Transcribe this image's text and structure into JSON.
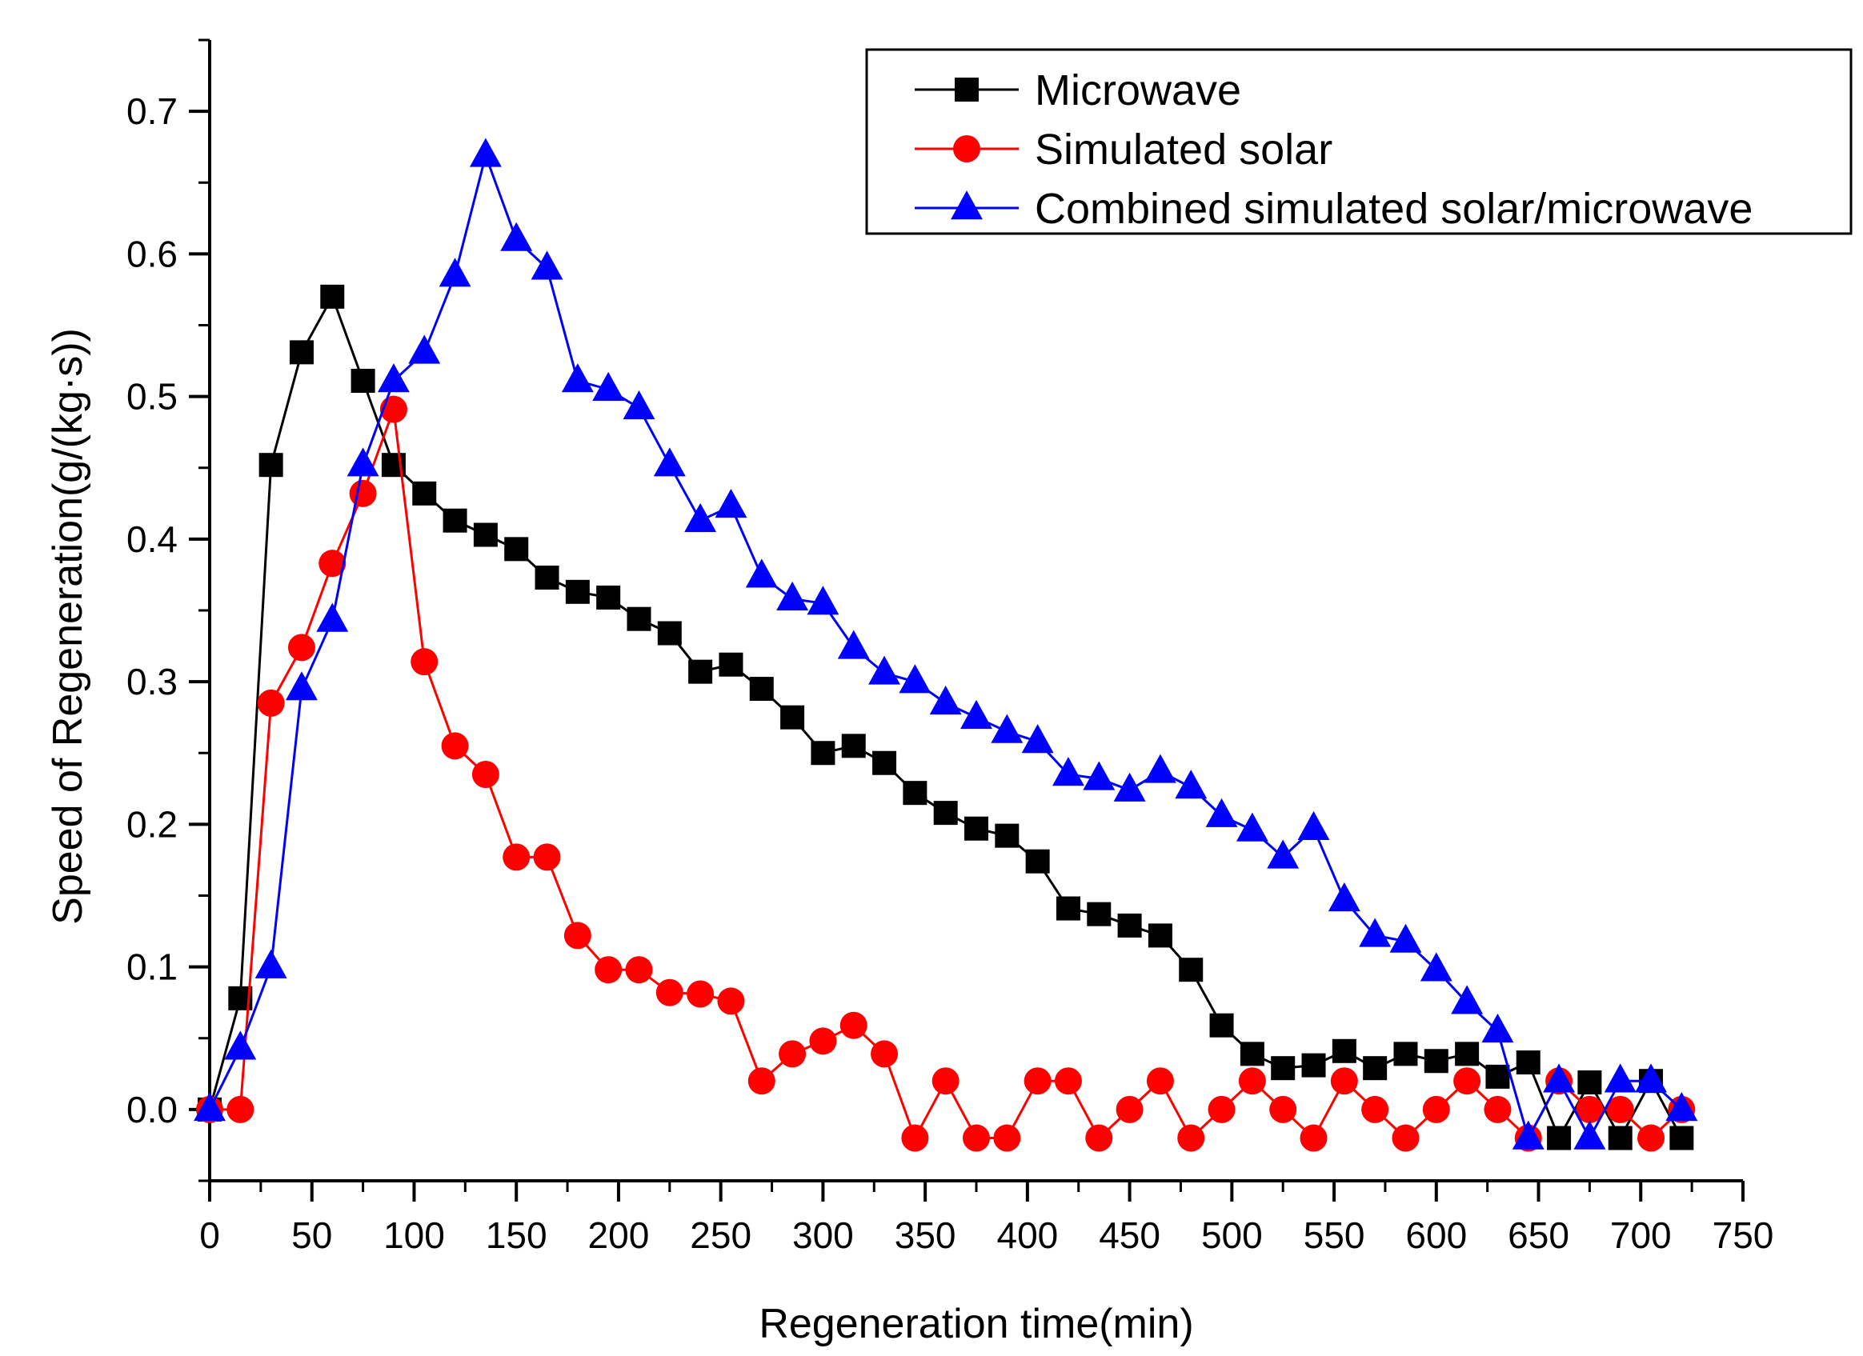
{
  "chart_data": {
    "type": "line",
    "xlabel": "Regeneration time(min)",
    "ylabel": "Speed of Regeneration(g/(kg·s))",
    "xlim": [
      0,
      750
    ],
    "ylim": [
      -0.05,
      0.75
    ],
    "xticks": [
      0,
      50,
      100,
      150,
      200,
      250,
      300,
      350,
      400,
      450,
      500,
      550,
      600,
      650,
      700,
      750
    ],
    "yticks": [
      0.0,
      0.1,
      0.2,
      0.3,
      0.4,
      0.5,
      0.6,
      0.7
    ],
    "xtick_labels": [
      "0",
      "50",
      "100",
      "150",
      "200",
      "250",
      "300",
      "350",
      "400",
      "450",
      "500",
      "550",
      "600",
      "650",
      "700",
      "750"
    ],
    "ytick_labels": [
      "0.0",
      "0.1",
      "0.2",
      "0.3",
      "0.4",
      "0.5",
      "0.6",
      "0.7"
    ],
    "legend_position": "top-right",
    "x": [
      0,
      15,
      30,
      45,
      60,
      75,
      90,
      105,
      120,
      135,
      150,
      165,
      180,
      195,
      210,
      225,
      240,
      255,
      270,
      285,
      300,
      315,
      330,
      345,
      360,
      375,
      390,
      405,
      420,
      435,
      450,
      465,
      480,
      495,
      510,
      525,
      540,
      555,
      570,
      585,
      600,
      615,
      630,
      645,
      660,
      675,
      690,
      705,
      720
    ],
    "series": [
      {
        "name": "Microwave",
        "color": "#000000",
        "marker": "square",
        "values": [
          0,
          0.078,
          0.452,
          0.531,
          0.57,
          0.511,
          0.452,
          0.432,
          0.413,
          0.403,
          0.393,
          0.373,
          0.363,
          0.359,
          0.344,
          0.334,
          0.307,
          0.312,
          0.295,
          0.275,
          0.25,
          0.255,
          0.243,
          0.222,
          0.208,
          0.197,
          0.192,
          0.174,
          0.141,
          0.137,
          0.129,
          0.122,
          0.098,
          0.059,
          0.039,
          0.029,
          0.031,
          0.041,
          0.029,
          0.039,
          0.034,
          0.039,
          0.023,
          0.033,
          -0.02,
          0.019,
          -0.02,
          0.02,
          -0.02
        ]
      },
      {
        "name": "Simulated solar",
        "color": "#ff0000",
        "marker": "circle",
        "values": [
          0,
          0,
          0.285,
          0.324,
          0.383,
          0.432,
          0.491,
          0.314,
          0.255,
          0.235,
          0.177,
          0.177,
          0.122,
          0.098,
          0.098,
          0.082,
          0.081,
          0.076,
          0.02,
          0.039,
          0.048,
          0.059,
          0.039,
          -0.02,
          0.02,
          -0.02,
          -0.02,
          0.02,
          0.02,
          -0.02,
          0,
          0.02,
          -0.02,
          0,
          0.02,
          0,
          -0.02,
          0.02,
          0,
          -0.02,
          0,
          0.02,
          0,
          -0.02,
          0.02,
          0,
          0,
          -0.02,
          0
        ]
      },
      {
        "name": "Combined simulated solar/microwave",
        "color": "#0000ff",
        "marker": "triangle",
        "values": [
          0,
          0.043,
          0.1,
          0.295,
          0.343,
          0.452,
          0.511,
          0.531,
          0.585,
          0.669,
          0.61,
          0.59,
          0.511,
          0.505,
          0.492,
          0.452,
          0.413,
          0.423,
          0.374,
          0.358,
          0.355,
          0.324,
          0.306,
          0.3,
          0.285,
          0.275,
          0.265,
          0.258,
          0.235,
          0.232,
          0.224,
          0.237,
          0.226,
          0.206,
          0.196,
          0.177,
          0.197,
          0.147,
          0.122,
          0.118,
          0.098,
          0.075,
          0.055,
          -0.02,
          0.02,
          -0.02,
          0.02,
          0.02,
          0
        ]
      }
    ]
  }
}
